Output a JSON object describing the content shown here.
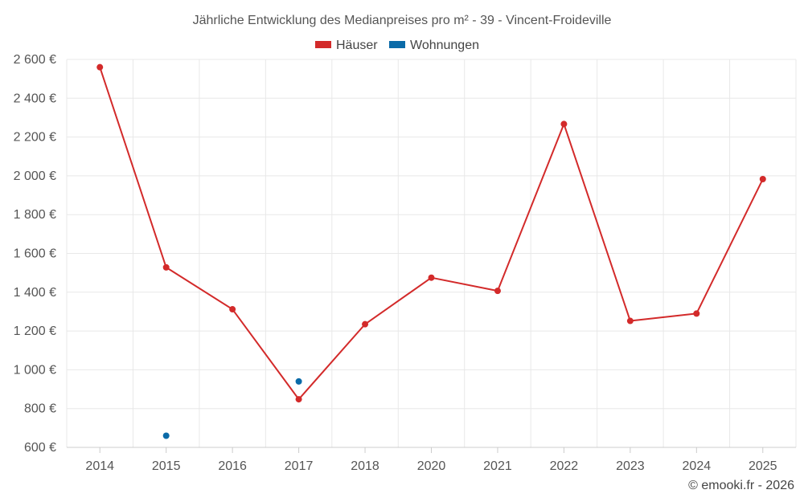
{
  "chart_data": {
    "type": "line",
    "title": "Jährliche Entwicklung des Medianpreises pro m² - 39 - Vincent-Froideville",
    "categories": [
      "2014",
      "2015",
      "2016",
      "2017",
      "2018",
      "2020",
      "2021",
      "2022",
      "2023",
      "2024",
      "2025"
    ],
    "series": [
      {
        "name": "Häuser",
        "color": "#d32a2a",
        "values": [
          2560,
          1528,
          1312,
          848,
          1235,
          1475,
          1407,
          2267,
          1252,
          1290,
          1983
        ]
      },
      {
        "name": "Wohnungen",
        "color": "#0a6aa8",
        "values": [
          null,
          660,
          null,
          940,
          null,
          null,
          null,
          null,
          null,
          null,
          null
        ]
      }
    ],
    "ylim": [
      600,
      2600
    ],
    "yticks": [
      600,
      800,
      1000,
      1200,
      1400,
      1600,
      1800,
      2000,
      2200,
      2400,
      2600
    ],
    "ytick_labels": [
      "600 €",
      "800 €",
      "1 000 €",
      "1 200 €",
      "1 400 €",
      "1 600 €",
      "1 800 €",
      "2 000 €",
      "2 200 €",
      "2 400 €",
      "2 600 €"
    ],
    "xlabel": "",
    "ylabel": "",
    "grid": true,
    "legend_position": "top-center"
  },
  "credit": "© emooki.fr - 2026"
}
